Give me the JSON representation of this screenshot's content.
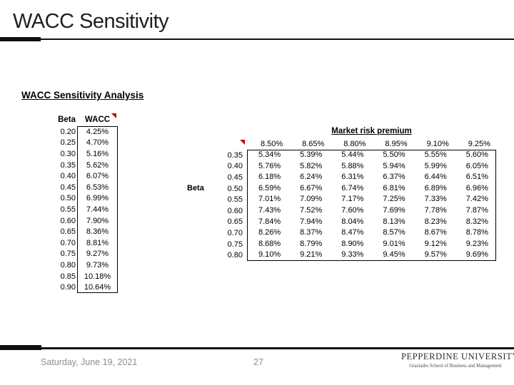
{
  "slide": {
    "title": "WACC Sensitivity",
    "footer": {
      "date": "Saturday, June 19, 2021",
      "page_number": "27"
    },
    "logo": {
      "line1": "PEPPERDINE UNIVERSITY",
      "line2": "Graziadio School of Business and Management"
    }
  },
  "worksheet": {
    "heading": "WACC Sensitivity Analysis",
    "left_table": {
      "beta_header": "Beta",
      "wacc_header": "WACC",
      "rows": [
        {
          "beta": "0.20",
          "wacc": "4.25%"
        },
        {
          "beta": "0.25",
          "wacc": "4.70%"
        },
        {
          "beta": "0.30",
          "wacc": "5.16%"
        },
        {
          "beta": "0.35",
          "wacc": "5.62%"
        },
        {
          "beta": "0.40",
          "wacc": "6.07%"
        },
        {
          "beta": "0.45",
          "wacc": "6.53%"
        },
        {
          "beta": "0.50",
          "wacc": "6.99%"
        },
        {
          "beta": "0.55",
          "wacc": "7.44%"
        },
        {
          "beta": "0.60",
          "wacc": "7.90%"
        },
        {
          "beta": "0.65",
          "wacc": "8.36%"
        },
        {
          "beta": "0.70",
          "wacc": "8.81%"
        },
        {
          "beta": "0.75",
          "wacc": "9.27%"
        },
        {
          "beta": "0.80",
          "wacc": "9.73%"
        },
        {
          "beta": "0.85",
          "wacc": "10.18%"
        },
        {
          "beta": "0.90",
          "wacc": "10.64%"
        }
      ]
    },
    "right_table": {
      "title": "Market risk premium",
      "axis_label": "Beta",
      "col_headers": [
        "8.50%",
        "8.65%",
        "8.80%",
        "8.95%",
        "9.10%",
        "9.25%"
      ],
      "rows": [
        {
          "beta": "0.35",
          "values": [
            "5.34%",
            "5.39%",
            "5.44%",
            "5.50%",
            "5.55%",
            "5.60%"
          ]
        },
        {
          "beta": "0.40",
          "values": [
            "5.76%",
            "5.82%",
            "5.88%",
            "5.94%",
            "5.99%",
            "6.05%"
          ]
        },
        {
          "beta": "0.45",
          "values": [
            "6.18%",
            "6.24%",
            "6.31%",
            "6.37%",
            "6.44%",
            "6.51%"
          ]
        },
        {
          "beta": "0.50",
          "values": [
            "6.59%",
            "6.67%",
            "6.74%",
            "6.81%",
            "6.89%",
            "6.96%"
          ]
        },
        {
          "beta": "0.55",
          "values": [
            "7.01%",
            "7.09%",
            "7.17%",
            "7.25%",
            "7.33%",
            "7.42%"
          ]
        },
        {
          "beta": "0.60",
          "values": [
            "7.43%",
            "7.52%",
            "7.60%",
            "7.69%",
            "7.78%",
            "7.87%"
          ]
        },
        {
          "beta": "0.65",
          "values": [
            "7.84%",
            "7.94%",
            "8.04%",
            "8.13%",
            "8.23%",
            "8.32%"
          ]
        },
        {
          "beta": "0.70",
          "values": [
            "8.26%",
            "8.37%",
            "8.47%",
            "8.57%",
            "8.67%",
            "8.78%"
          ]
        },
        {
          "beta": "0.75",
          "values": [
            "8.68%",
            "8.79%",
            "8.90%",
            "9.01%",
            "9.12%",
            "9.23%"
          ]
        },
        {
          "beta": "0.80",
          "values": [
            "9.10%",
            "9.21%",
            "9.33%",
            "9.45%",
            "9.57%",
            "9.69%"
          ]
        }
      ]
    }
  },
  "colors": {
    "comment_marker": "#c00000",
    "title_text": "#1f1f1f",
    "footer_text": "#8e8e8e",
    "rule": "#111111"
  }
}
